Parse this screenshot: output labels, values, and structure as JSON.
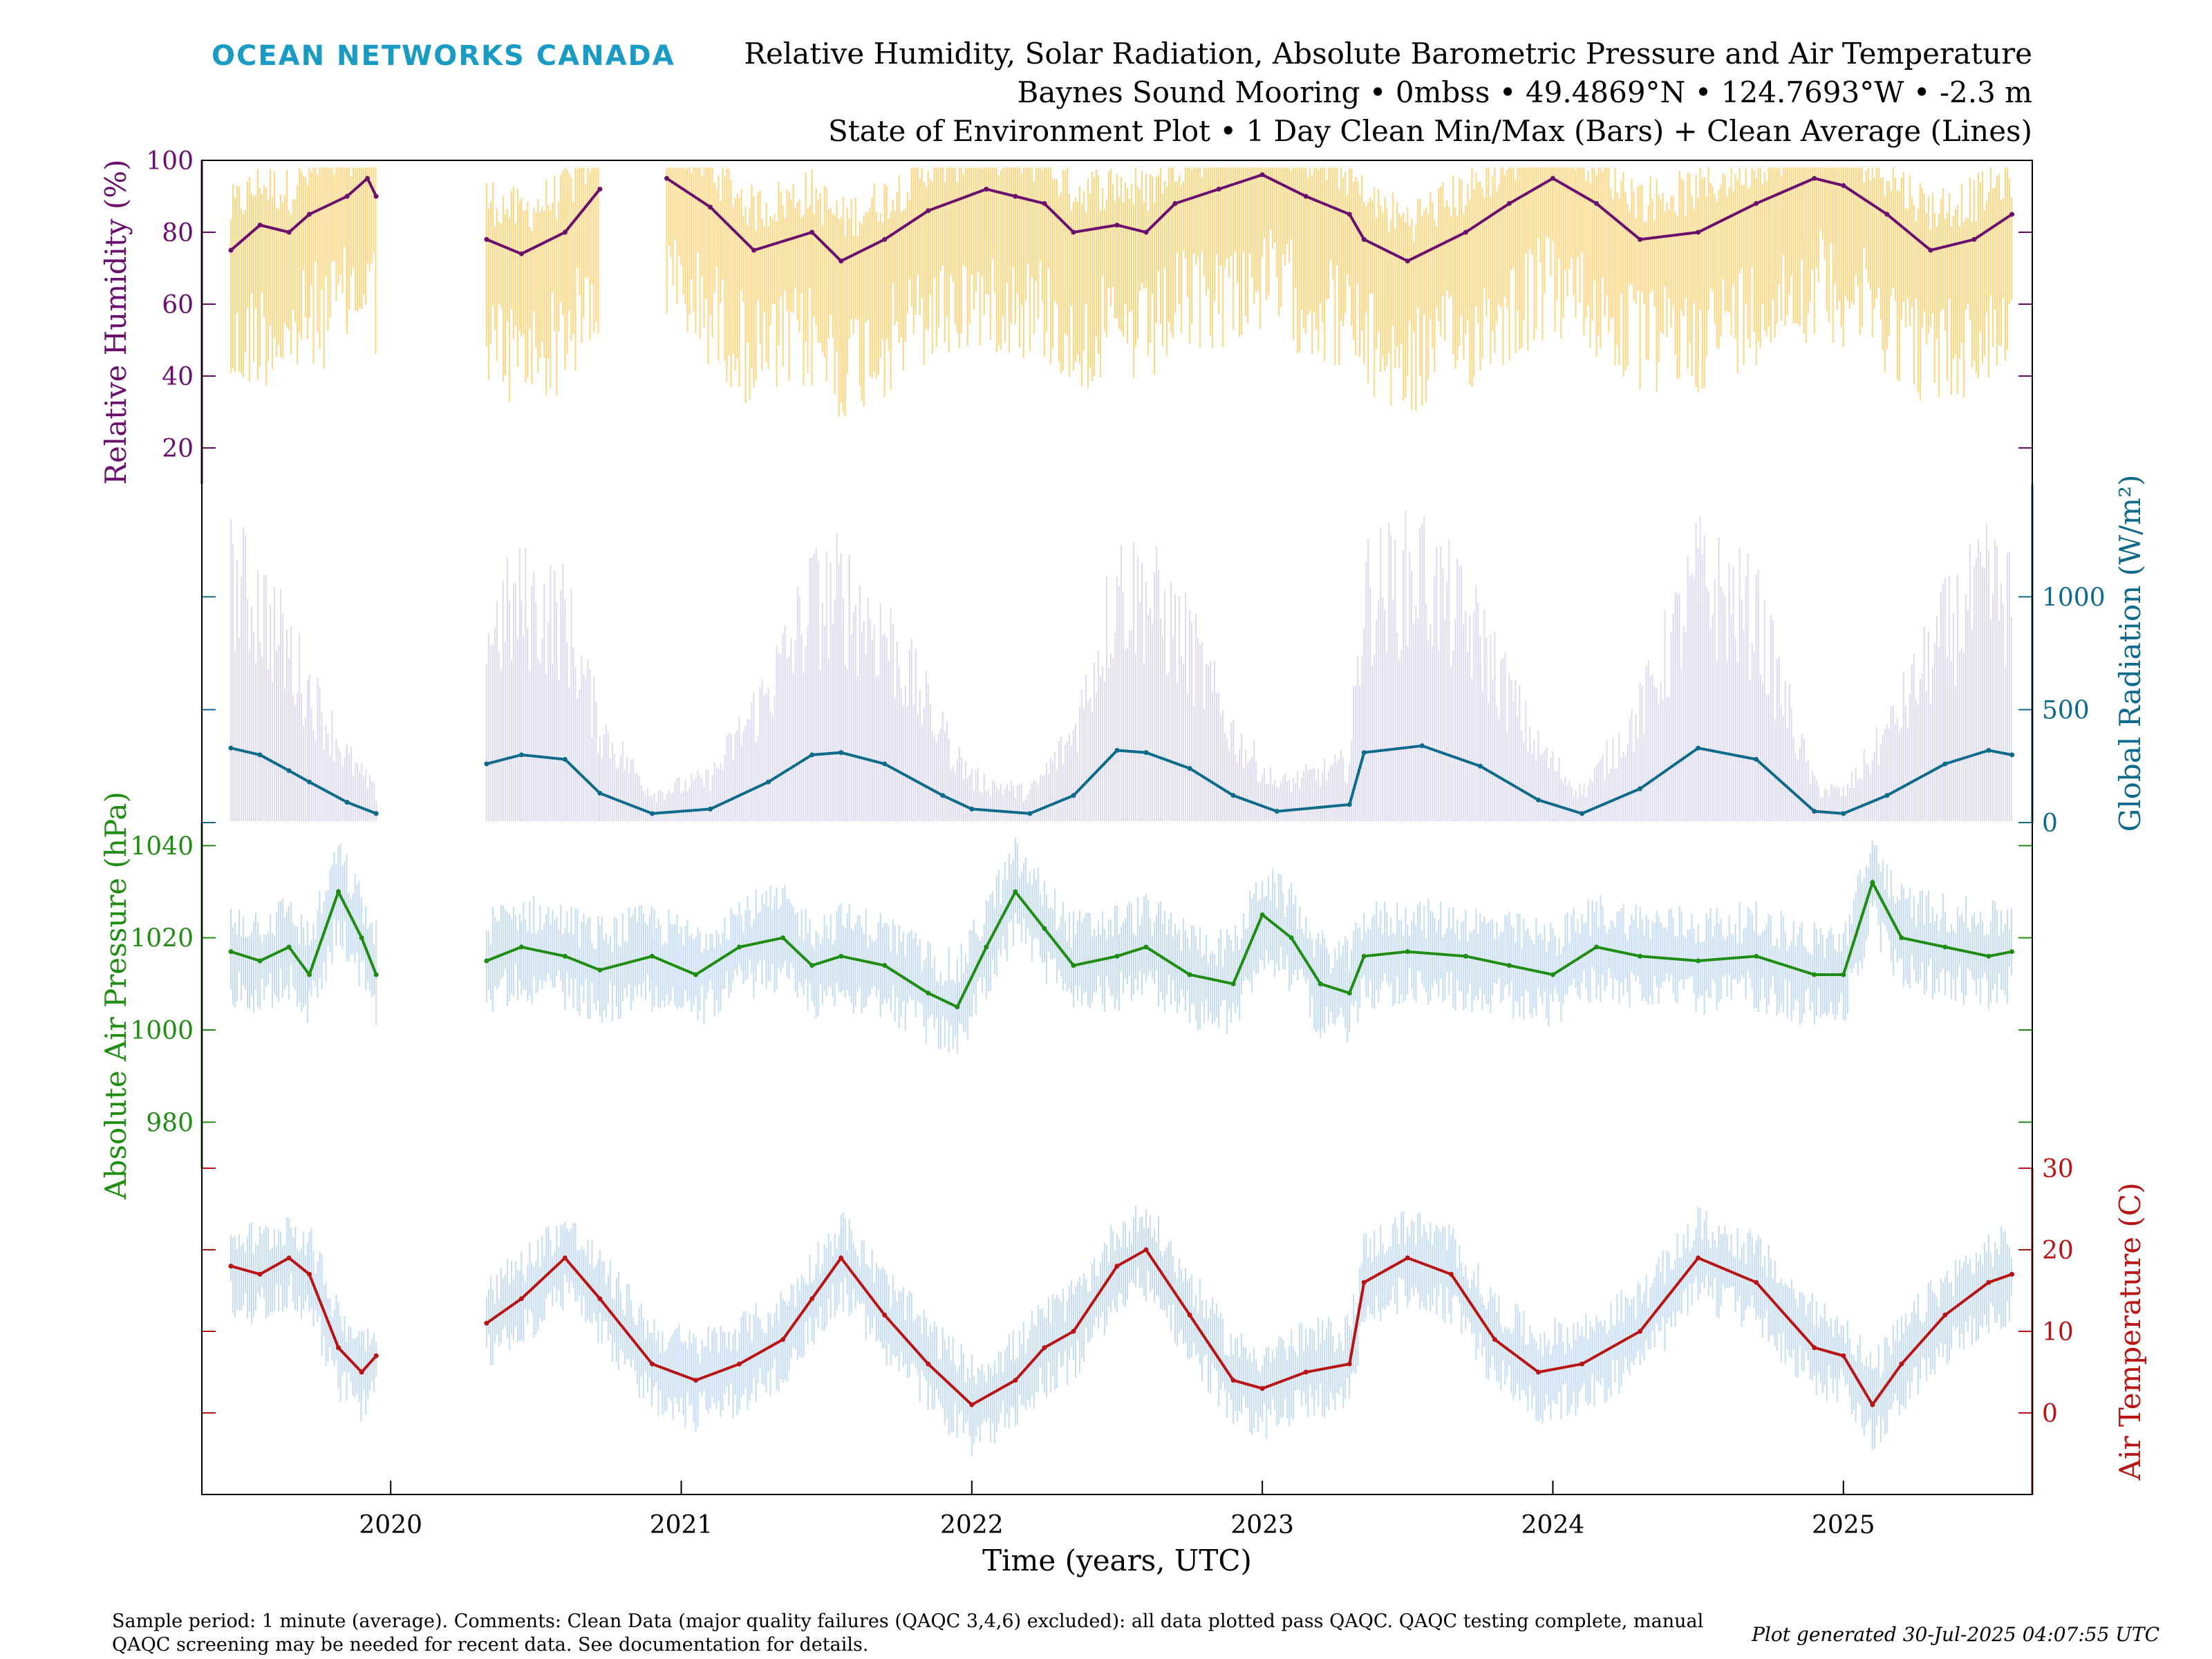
{
  "brand": {
    "name": "OCEAN NETWORKS CANADA",
    "color": "#1a9bc4"
  },
  "header": {
    "title_line1": "Relative Humidity, Solar Radiation, Absolute Barometric Pressure and Air Temperature",
    "title_line2": "Baynes Sound Mooring • 0mbss • 49.4869°N • 124.7693°W • -2.3 m",
    "title_line3": "State of Environment Plot • 1 Day Clean Min/Max (Bars) + Clean Average (Lines)"
  },
  "footer": {
    "note_line1": "Sample period: 1 minute (average). Comments: Clean Data (major quality failures (QAQC 3,4,6) excluded): all data plotted pass QAQC. QAQC testing complete, manual",
    "note_line2": "QAQC screening may be needed for recent data. See documentation for details.",
    "generated": "Plot generated 30-Jul-2025 04:07:55 UTC"
  },
  "chart_data": [
    {
      "type": "line",
      "panel": "humidity",
      "ylabel": "Relative Humidity (%)",
      "y_axis_side": "left",
      "color": "#6a0f6e",
      "band_color": "#fcd67f",
      "ylim": [
        10,
        100
      ],
      "yticks": [
        20,
        40,
        60,
        80,
        100
      ],
      "series": [
        {
          "name": "",
          "x": [
            2019.45,
            2019.55,
            2019.65,
            2019.72,
            2019.85,
            2019.92,
            2019.95,
            2020.33,
            2020.45,
            2020.6,
            2020.72,
            2020.85,
            2020.95,
            2021.1,
            2021.25,
            2021.45,
            2021.55,
            2021.7,
            2021.85,
            2022.05,
            2022.15,
            2022.25,
            2022.35,
            2022.5,
            2022.6,
            2022.7,
            2022.85,
            2023.0,
            2023.15,
            2023.3,
            2023.35,
            2023.5,
            2023.7,
            2023.85,
            2024.0,
            2024.15,
            2024.3,
            2024.5,
            2024.7,
            2024.9,
            2025.0,
            2025.15,
            2025.3,
            2025.45,
            2025.58
          ],
          "values": [
            75,
            82,
            80,
            85,
            90,
            95,
            90,
            78,
            74,
            80,
            92,
            null,
            95,
            87,
            75,
            80,
            72,
            78,
            86,
            92,
            90,
            88,
            80,
            82,
            80,
            88,
            92,
            96,
            90,
            85,
            78,
            72,
            80,
            88,
            95,
            88,
            78,
            80,
            88,
            95,
            93,
            85,
            75,
            78,
            85
          ]
        }
      ]
    },
    {
      "type": "line",
      "panel": "radiation",
      "ylabel": "Global Radiation (W/m²)",
      "y_axis_side": "right",
      "color": "#0e6a8a",
      "band_color": "#dcdcee",
      "ylim": [
        0,
        1500
      ],
      "yticks": [
        0,
        500,
        1000
      ],
      "series": [
        {
          "name": "",
          "x": [
            2019.45,
            2019.55,
            2019.65,
            2019.72,
            2019.85,
            2019.95,
            2020.33,
            2020.45,
            2020.6,
            2020.72,
            2020.9,
            2021.1,
            2021.3,
            2021.45,
            2021.55,
            2021.7,
            2021.9,
            2022.0,
            2022.2,
            2022.35,
            2022.5,
            2022.6,
            2022.75,
            2022.9,
            2023.05,
            2023.3,
            2023.35,
            2023.55,
            2023.75,
            2023.95,
            2024.1,
            2024.3,
            2024.5,
            2024.7,
            2024.9,
            2025.0,
            2025.15,
            2025.35,
            2025.5,
            2025.58
          ],
          "values": [
            330,
            300,
            230,
            180,
            90,
            40,
            260,
            300,
            280,
            130,
            40,
            60,
            180,
            300,
            310,
            260,
            120,
            60,
            40,
            120,
            320,
            310,
            240,
            120,
            50,
            80,
            310,
            340,
            250,
            100,
            40,
            150,
            330,
            280,
            50,
            40,
            120,
            260,
            320,
            300
          ]
        }
      ]
    },
    {
      "type": "line",
      "panel": "pressure",
      "ylabel": "Absolute Air Pressure (hPa)",
      "y_axis_side": "left",
      "color": "#1f8c12",
      "band_color": "#c6dcf0",
      "ylim": [
        970,
        1045
      ],
      "yticks": [
        980,
        1000,
        1020,
        1040
      ],
      "series": [
        {
          "name": "",
          "x": [
            2019.45,
            2019.55,
            2019.65,
            2019.72,
            2019.82,
            2019.9,
            2019.95,
            2020.33,
            2020.45,
            2020.6,
            2020.72,
            2020.9,
            2021.05,
            2021.2,
            2021.35,
            2021.45,
            2021.55,
            2021.7,
            2021.85,
            2021.95,
            2022.05,
            2022.15,
            2022.25,
            2022.35,
            2022.5,
            2022.6,
            2022.75,
            2022.9,
            2023.0,
            2023.1,
            2023.2,
            2023.3,
            2023.35,
            2023.5,
            2023.7,
            2023.85,
            2024.0,
            2024.15,
            2024.3,
            2024.5,
            2024.7,
            2024.9,
            2025.0,
            2025.1,
            2025.2,
            2025.35,
            2025.5,
            2025.58
          ],
          "values": [
            1017,
            1015,
            1018,
            1012,
            1030,
            1020,
            1012,
            1015,
            1018,
            1016,
            1013,
            1016,
            1012,
            1018,
            1020,
            1014,
            1016,
            1014,
            1008,
            1005,
            1018,
            1030,
            1022,
            1014,
            1016,
            1018,
            1012,
            1010,
            1025,
            1020,
            1010,
            1008,
            1016,
            1017,
            1016,
            1014,
            1012,
            1018,
            1016,
            1015,
            1016,
            1012,
            1012,
            1032,
            1020,
            1018,
            1016,
            1017
          ]
        }
      ]
    },
    {
      "type": "line",
      "panel": "temperature",
      "ylabel": "Air Temperature (C)",
      "y_axis_side": "right",
      "color": "#b81414",
      "band_color": "#c6dcf0",
      "ylim": [
        -10,
        30
      ],
      "yticks": [
        0,
        10,
        20,
        30
      ],
      "series": [
        {
          "name": "",
          "x": [
            2019.45,
            2019.55,
            2019.65,
            2019.72,
            2019.82,
            2019.9,
            2019.95,
            2020.33,
            2020.45,
            2020.6,
            2020.72,
            2020.9,
            2021.05,
            2021.2,
            2021.35,
            2021.45,
            2021.55,
            2021.7,
            2021.85,
            2022.0,
            2022.15,
            2022.25,
            2022.35,
            2022.5,
            2022.6,
            2022.75,
            2022.9,
            2023.0,
            2023.15,
            2023.3,
            2023.35,
            2023.5,
            2023.65,
            2023.8,
            2023.95,
            2024.1,
            2024.3,
            2024.5,
            2024.7,
            2024.9,
            2025.0,
            2025.1,
            2025.2,
            2025.35,
            2025.5,
            2025.58
          ],
          "values": [
            18,
            17,
            19,
            17,
            8,
            5,
            7,
            11,
            14,
            19,
            14,
            6,
            4,
            6,
            9,
            14,
            19,
            12,
            6,
            1,
            4,
            8,
            10,
            18,
            20,
            12,
            4,
            3,
            5,
            6,
            16,
            19,
            17,
            9,
            5,
            6,
            10,
            19,
            16,
            8,
            7,
            1,
            6,
            12,
            16,
            17
          ]
        }
      ]
    }
  ],
  "x_axis": {
    "label": "Time (years, UTC)",
    "range": [
      2019.35,
      2025.65
    ],
    "ticks": [
      2020,
      2021,
      2022,
      2023,
      2024,
      2025
    ],
    "tick_labels": [
      "2020",
      "2021",
      "2022",
      "2023",
      "2024",
      "2025"
    ]
  }
}
